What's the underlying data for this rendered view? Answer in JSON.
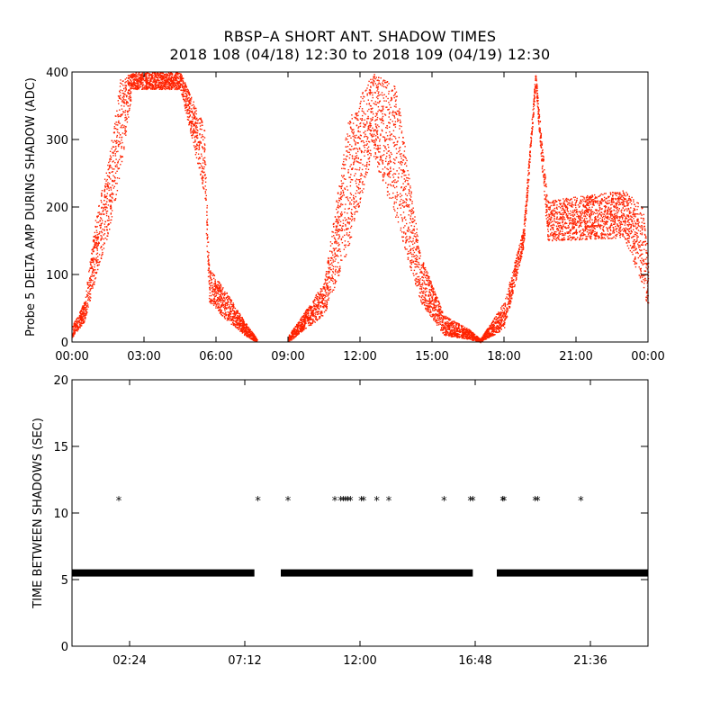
{
  "title": "RBSP–A SHORT ANT. SHADOW TIMES",
  "subtitle": "2018 108 (04/18) 12:30 to 2018 109 (04/19) 12:30",
  "colors": {
    "top_series": "#ff2200",
    "bottom_series": "#000000",
    "axes": "#000000",
    "background": "#ffffff"
  },
  "chart_data": [
    {
      "type": "scatter",
      "ylabel": "Probe 5 DELTA AMP DURING SHADOW (ADC)",
      "xlabel": "",
      "xlim": [
        0,
        24
      ],
      "ylim": [
        0,
        400
      ],
      "x_tick_labels": [
        "00:00",
        "03:00",
        "06:00",
        "09:00",
        "12:00",
        "15:00",
        "18:00",
        "21:00",
        "00:00"
      ],
      "x_tick_values": [
        0,
        3,
        6,
        9,
        12,
        15,
        18,
        21,
        24
      ],
      "y_tick_labels": [
        "0",
        "100",
        "200",
        "300",
        "400"
      ],
      "y_tick_values": [
        0,
        100,
        200,
        300,
        400
      ],
      "marker": "dot",
      "color": "#ff2200",
      "series_envelope": [
        {
          "x": 0.0,
          "y_low": 8,
          "y_high": 25
        },
        {
          "x": 0.5,
          "y_low": 30,
          "y_high": 60
        },
        {
          "x": 1.0,
          "y_low": 100,
          "y_high": 190
        },
        {
          "x": 1.5,
          "y_low": 160,
          "y_high": 270
        },
        {
          "x": 2.0,
          "y_low": 250,
          "y_high": 390
        },
        {
          "x": 2.5,
          "y_low": 375,
          "y_high": 400
        },
        {
          "x": 4.5,
          "y_low": 375,
          "y_high": 400
        },
        {
          "x": 5.5,
          "y_low": 220,
          "y_high": 320
        },
        {
          "x": 5.7,
          "y_low": 60,
          "y_high": 110
        },
        {
          "x": 6.5,
          "y_low": 30,
          "y_high": 70
        },
        {
          "x": 7.2,
          "y_low": 10,
          "y_high": 30
        },
        {
          "x": 7.7,
          "y_low": 0,
          "y_high": 5
        },
        {
          "x": 9.0,
          "y_low": 0,
          "y_high": 10
        },
        {
          "x": 9.5,
          "y_low": 15,
          "y_high": 35
        },
        {
          "x": 10.5,
          "y_low": 40,
          "y_high": 90
        },
        {
          "x": 11.5,
          "y_low": 140,
          "y_high": 330
        },
        {
          "x": 12.5,
          "y_low": 280,
          "y_high": 400
        },
        {
          "x": 13.5,
          "y_low": 180,
          "y_high": 380
        },
        {
          "x": 14.5,
          "y_low": 60,
          "y_high": 130
        },
        {
          "x": 15.5,
          "y_low": 10,
          "y_high": 40
        },
        {
          "x": 16.5,
          "y_low": 5,
          "y_high": 20
        },
        {
          "x": 17.0,
          "y_low": 0,
          "y_high": 5
        },
        {
          "x": 18.0,
          "y_low": 20,
          "y_high": 60
        },
        {
          "x": 18.8,
          "y_low": 140,
          "y_high": 170
        },
        {
          "x": 19.3,
          "y_low": 380,
          "y_high": 400
        },
        {
          "x": 19.8,
          "y_low": 150,
          "y_high": 210
        },
        {
          "x": 23.0,
          "y_low": 155,
          "y_high": 225
        },
        {
          "x": 23.8,
          "y_low": 80,
          "y_high": 200
        },
        {
          "x": 24.0,
          "y_low": 40,
          "y_high": 120
        }
      ]
    },
    {
      "type": "scatter",
      "ylabel": "TIME BETWEEN SHADOWS (SEC)",
      "xlabel": "",
      "xlim": [
        0,
        24
      ],
      "ylim": [
        0,
        20
      ],
      "x_tick_labels": [
        "02:24",
        "07:12",
        "12:00",
        "16:48",
        "21:36"
      ],
      "x_tick_values": [
        2.4,
        7.2,
        12.0,
        16.8,
        21.6
      ],
      "y_tick_labels": [
        "0",
        "5",
        "10",
        "15",
        "20"
      ],
      "y_tick_values": [
        0,
        5,
        10,
        15,
        20
      ],
      "marker": "asterisk",
      "color": "#000000",
      "band_value": 5.5,
      "band_segments": [
        [
          0.0,
          7.6
        ],
        [
          8.7,
          16.7
        ],
        [
          17.7,
          24.0
        ]
      ],
      "points_x": [
        1.95,
        7.75,
        9.0,
        10.95,
        11.2,
        11.3,
        11.4,
        11.5,
        11.6,
        12.05,
        12.15,
        12.7,
        13.2,
        15.5,
        16.6,
        16.7,
        17.95,
        18.0,
        19.3,
        19.4,
        21.2
      ],
      "points_y": [
        11,
        11,
        11,
        11,
        11,
        11,
        11,
        11,
        11,
        11,
        11,
        11,
        11,
        11,
        11,
        11,
        11,
        11,
        11,
        11,
        11
      ]
    }
  ]
}
